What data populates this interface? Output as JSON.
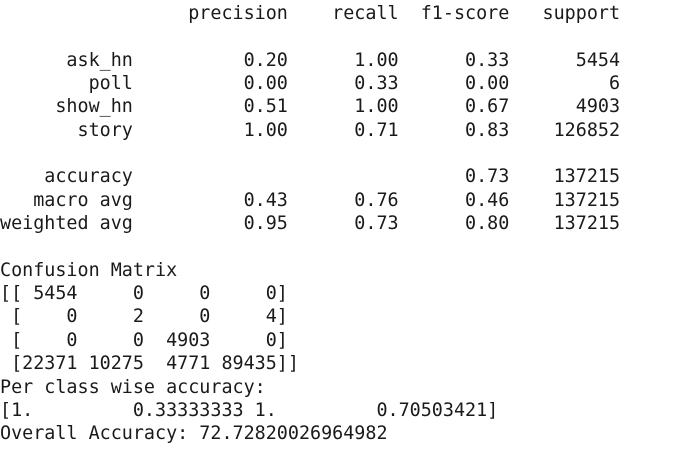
{
  "console_output": {
    "lines": [
      "                 precision    recall  f1-score   support",
      "",
      "      ask_hn          0.20      1.00      0.33      5454",
      "        poll          0.00      0.33      0.00         6",
      "     show_hn          0.51      1.00      0.67      4903",
      "       story          1.00      0.71      0.83    126852",
      "",
      "    accuracy                              0.73    137215",
      "   macro avg          0.43      0.76      0.46    137215",
      "weighted avg          0.95      0.73      0.80    137215",
      "",
      "Confusion Matrix",
      "[[ 5454     0     0     0]",
      " [    0     2     0     4]",
      " [    0     0  4903     0]",
      " [22371 10275  4771 89435]]",
      "Per class wise accuracy:",
      "[1.         0.33333333 1.         0.70503421]",
      "Overall Accuracy: 72.72820026964982"
    ]
  }
}
